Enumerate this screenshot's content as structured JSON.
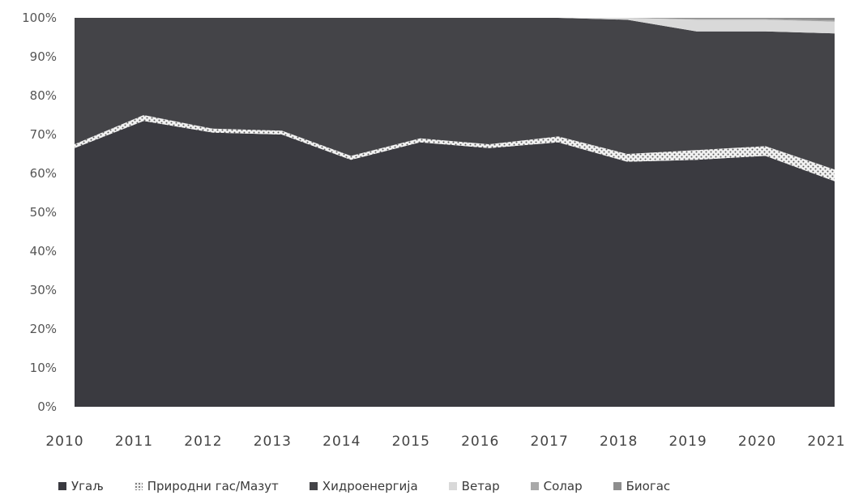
{
  "chart_data": {
    "type": "area",
    "stacked": true,
    "normalized": true,
    "title": "",
    "xlabel": "",
    "ylabel": "",
    "x": [
      "2010",
      "2011",
      "2012",
      "2013",
      "2014",
      "2015",
      "2016",
      "2017",
      "2018",
      "2019",
      "2020",
      "2021"
    ],
    "y_ticks": [
      "0%",
      "10%",
      "20%",
      "30%",
      "40%",
      "50%",
      "60%",
      "70%",
      "80%",
      "90%",
      "100%"
    ],
    "ylim": [
      0,
      100
    ],
    "grid": false,
    "legend_position": "bottom",
    "series": [
      {
        "name": "Угаљ",
        "color": "#3a3a40",
        "values": [
          66.5,
          73.5,
          70.5,
          70.0,
          63.5,
          68.0,
          66.5,
          68.0,
          63.0,
          63.5,
          64.5,
          58.0
        ]
      },
      {
        "name": "Природни гас/Мазут",
        "color": "#ececec",
        "values": [
          1.0,
          1.5,
          1.0,
          1.0,
          1.0,
          1.0,
          1.0,
          1.5,
          2.0,
          2.5,
          2.5,
          3.0
        ]
      },
      {
        "name": "Хидроенергија",
        "color": "#444448",
        "values": [
          32.5,
          25.0,
          28.5,
          29.0,
          35.5,
          31.0,
          32.5,
          30.5,
          34.5,
          30.5,
          29.5,
          35.0
        ]
      },
      {
        "name": "Ветар",
        "color": "#d9d9d9",
        "values": [
          0.0,
          0.0,
          0.0,
          0.0,
          0.0,
          0.0,
          0.0,
          0.0,
          0.5,
          3.0,
          3.0,
          3.0
        ]
      },
      {
        "name": "Солар",
        "color": "#a9a9a9",
        "values": [
          0.0,
          0.0,
          0.0,
          0.0,
          0.0,
          0.0,
          0.0,
          0.0,
          0.0,
          0.2,
          0.2,
          0.3
        ]
      },
      {
        "name": "Биогас",
        "color": "#8e8e8e",
        "values": [
          0.0,
          0.0,
          0.0,
          0.0,
          0.0,
          0.0,
          0.0,
          0.0,
          0.0,
          0.3,
          0.3,
          0.7
        ]
      }
    ]
  }
}
